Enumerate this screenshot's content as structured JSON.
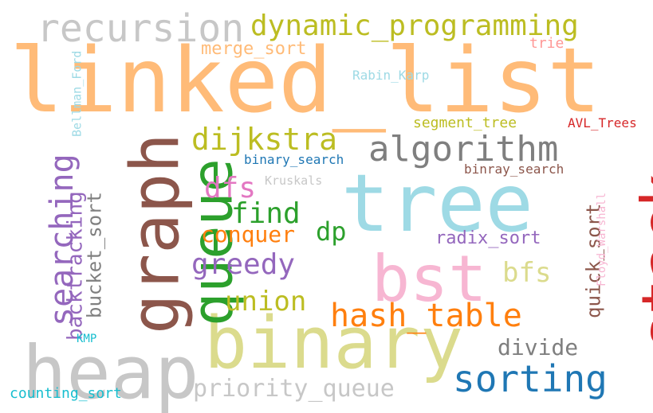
{
  "words": [
    {
      "text": "linked_list",
      "color": "#ffbb78",
      "orientation": "horizontal"
    },
    {
      "text": "tree",
      "color": "#9edae5",
      "orientation": "horizontal"
    },
    {
      "text": "binary",
      "color": "#dbdb8d",
      "orientation": "horizontal"
    },
    {
      "text": "heap",
      "color": "#c7c7c7",
      "orientation": "horizontal"
    },
    {
      "text": "graph",
      "color": "#8c564b",
      "orientation": "vertical"
    },
    {
      "text": "queue",
      "color": "#2ca02c",
      "orientation": "vertical"
    },
    {
      "text": "stack",
      "color": "#d62728",
      "orientation": "vertical"
    },
    {
      "text": "bst",
      "color": "#f7b6d2",
      "orientation": "horizontal"
    },
    {
      "text": "recursion",
      "color": "#c7c7c7",
      "orientation": "horizontal"
    },
    {
      "text": "dynamic_programming",
      "color": "#bcbd22",
      "orientation": "horizontal"
    },
    {
      "text": "algorithm",
      "color": "#7f7f7f",
      "orientation": "horizontal"
    },
    {
      "text": "searching",
      "color": "#9467bd",
      "orientation": "vertical"
    },
    {
      "text": "hash_table",
      "color": "#ff7f0e",
      "orientation": "horizontal"
    },
    {
      "text": "sorting",
      "color": "#1f77b4",
      "orientation": "horizontal"
    },
    {
      "text": "dijkstra",
      "color": "#bcbd22",
      "orientation": "horizontal"
    },
    {
      "text": "greedy",
      "color": "#9467bd",
      "orientation": "horizontal"
    },
    {
      "text": "priority_queue",
      "color": "#c7c7c7",
      "orientation": "horizontal"
    },
    {
      "text": "union",
      "color": "#bcbd22",
      "orientation": "horizontal"
    },
    {
      "text": "find",
      "color": "#2ca02c",
      "orientation": "horizontal"
    },
    {
      "text": "dfs",
      "color": "#e377c2",
      "orientation": "horizontal"
    },
    {
      "text": "bfs",
      "color": "#dbdb8d",
      "orientation": "horizontal"
    },
    {
      "text": "dp",
      "color": "#2ca02c",
      "orientation": "horizontal"
    },
    {
      "text": "conquer",
      "color": "#ff7f0e",
      "orientation": "horizontal"
    },
    {
      "text": "divide",
      "color": "#7f7f7f",
      "orientation": "horizontal"
    },
    {
      "text": "backtracking",
      "color": "#9467bd",
      "orientation": "vertical"
    },
    {
      "text": "bucket_sort",
      "color": "#7f7f7f",
      "orientation": "vertical"
    },
    {
      "text": "quick_sort",
      "color": "#8c564b",
      "orientation": "vertical"
    },
    {
      "text": "radix_sort",
      "color": "#9467bd",
      "orientation": "horizontal"
    },
    {
      "text": "merge_sort",
      "color": "#ffbb78",
      "orientation": "horizontal"
    },
    {
      "text": "segment_tree",
      "color": "#bcbd22",
      "orientation": "horizontal"
    },
    {
      "text": "AVL_Trees",
      "color": "#d62728",
      "orientation": "horizontal"
    },
    {
      "text": "binary_search",
      "color": "#1f77b4",
      "orientation": "horizontal"
    },
    {
      "text": "binray_search",
      "color": "#8c564b",
      "orientation": "horizontal"
    },
    {
      "text": "counting_sort",
      "color": "#17becf",
      "orientation": "horizontal"
    },
    {
      "text": "Rabin_Karp",
      "color": "#9edae5",
      "orientation": "horizontal"
    },
    {
      "text": "Bellman_Ford",
      "color": "#9edae5",
      "orientation": "vertical"
    },
    {
      "text": "Floyd_Warshall",
      "color": "#f7b6d2",
      "orientation": "vertical"
    },
    {
      "text": "Kruskals",
      "color": "#c7c7c7",
      "orientation": "horizontal"
    },
    {
      "text": "trie",
      "color": "#ff9896",
      "orientation": "horizontal"
    },
    {
      "text": "KMP",
      "color": "#17becf",
      "orientation": "horizontal"
    }
  ]
}
